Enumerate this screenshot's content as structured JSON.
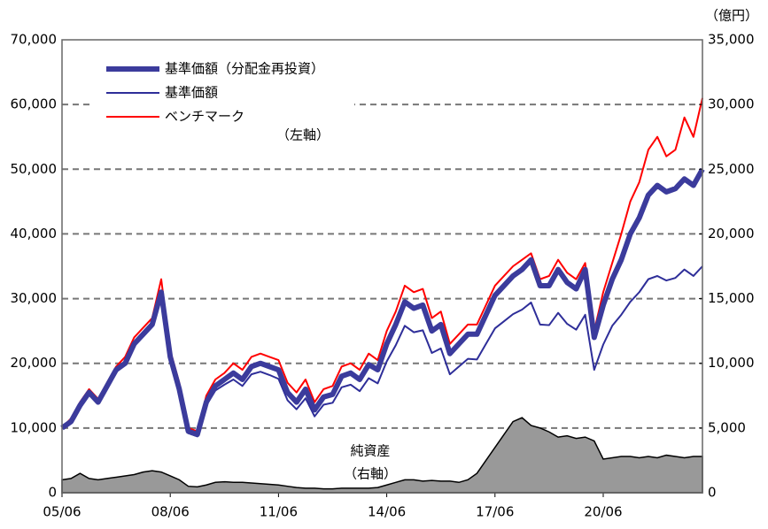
{
  "chart_data": {
    "type": "line",
    "x": [
      "05/06",
      "05/09",
      "05/12",
      "06/03",
      "06/06",
      "06/09",
      "06/12",
      "07/03",
      "07/06",
      "07/09",
      "07/12",
      "08/03",
      "08/06",
      "08/09",
      "08/12",
      "09/03",
      "09/06",
      "09/09",
      "09/12",
      "10/03",
      "10/06",
      "10/09",
      "10/12",
      "11/03",
      "11/06",
      "11/09",
      "11/12",
      "12/03",
      "12/06",
      "12/09",
      "12/12",
      "13/03",
      "13/06",
      "13/09",
      "13/12",
      "14/03",
      "14/06",
      "14/09",
      "14/12",
      "15/03",
      "15/06",
      "15/09",
      "15/12",
      "16/03",
      "16/06",
      "16/09",
      "16/12",
      "17/03",
      "17/06",
      "17/09",
      "17/12",
      "18/03",
      "18/06",
      "18/09",
      "18/12",
      "19/03",
      "19/06",
      "19/09",
      "19/12",
      "20/03",
      "20/06",
      "20/09",
      "20/12",
      "21/03",
      "21/06",
      "21/09",
      "21/12",
      "22/03",
      "22/06",
      "22/09",
      "22/12",
      "23/03"
    ],
    "series": [
      {
        "name": "基準価額（分配金再投資）",
        "color": "#3b3b9c",
        "width": 6,
        "values": [
          10000,
          11000,
          13500,
          15500,
          14000,
          16500,
          19000,
          20000,
          23000,
          24500,
          26000,
          31000,
          21000,
          16000,
          9500,
          9000,
          14000,
          16500,
          17500,
          18500,
          17500,
          19500,
          20000,
          19500,
          19000,
          15500,
          14000,
          16000,
          12800,
          14800,
          15200,
          18000,
          18500,
          17500,
          19800,
          19000,
          23000,
          26000,
          29500,
          28500,
          29000,
          25000,
          26000,
          21500,
          23000,
          24500,
          24500,
          27500,
          30500,
          32000,
          33500,
          34500,
          36000,
          32000,
          32000,
          34500,
          32500,
          31500,
          34500,
          24000,
          29000,
          33000,
          36000,
          40000,
          42500,
          46000,
          47500,
          46500,
          47000,
          48500,
          47500,
          50000
        ]
      },
      {
        "name": "基準価額",
        "color": "#2e2e99",
        "width": 2,
        "values": [
          10000,
          11000,
          13500,
          15500,
          14000,
          16500,
          19000,
          20000,
          23000,
          24500,
          26000,
          30500,
          20500,
          15500,
          9200,
          8700,
          13500,
          15800,
          16700,
          17500,
          16500,
          18300,
          18700,
          18200,
          17600,
          14300,
          12900,
          14600,
          11800,
          13600,
          13900,
          16300,
          16700,
          15700,
          17700,
          16900,
          20300,
          22800,
          25800,
          24800,
          25100,
          21600,
          22300,
          18300,
          19500,
          20700,
          20600,
          23000,
          25400,
          26500,
          27600,
          28300,
          29400,
          26000,
          25900,
          27800,
          26100,
          25200,
          27500,
          19000,
          22900,
          25800,
          27500,
          29500,
          31000,
          33000,
          33500,
          32800,
          33200,
          34500,
          33500,
          35000
        ]
      },
      {
        "name": "ベンチマーク",
        "color": "#ff0000",
        "width": 2,
        "values": [
          10000,
          11500,
          14000,
          16000,
          14500,
          17000,
          19500,
          21000,
          24000,
          25500,
          27000,
          33000,
          22000,
          17000,
          10000,
          9500,
          15000,
          17500,
          18500,
          20000,
          19000,
          21000,
          21500,
          21000,
          20500,
          17000,
          15500,
          17500,
          14000,
          16000,
          16500,
          19500,
          20000,
          19000,
          21500,
          20500,
          25000,
          28000,
          32000,
          31000,
          31500,
          27000,
          28000,
          23000,
          24500,
          26000,
          26000,
          29000,
          32000,
          33500,
          35000,
          36000,
          37000,
          33000,
          33500,
          36000,
          34000,
          33000,
          35500,
          25000,
          31000,
          35500,
          40000,
          45000,
          48000,
          53000,
          55000,
          52000,
          53000,
          58000,
          55000,
          61000
        ]
      },
      {
        "name": "純資産",
        "color": "#999999",
        "axis": "y2",
        "kind": "area",
        "values": [
          1000,
          1100,
          1500,
          1100,
          1000,
          1100,
          1200,
          1300,
          1400,
          1600,
          1700,
          1600,
          1300,
          1000,
          500,
          450,
          600,
          800,
          850,
          800,
          800,
          750,
          700,
          650,
          600,
          500,
          400,
          350,
          350,
          300,
          300,
          350,
          350,
          350,
          350,
          400,
          600,
          800,
          1000,
          1000,
          900,
          950,
          900,
          900,
          800,
          1000,
          1500,
          2500,
          3500,
          4500,
          5500,
          5800,
          5200,
          5000,
          4700,
          4300,
          4400,
          4200,
          4300,
          4000,
          2600,
          2700,
          2800,
          2800,
          2700,
          2800,
          2700,
          2900,
          2800,
          2700,
          2800,
          2800
        ]
      }
    ],
    "ylim": [
      0,
      70000
    ],
    "yticks": [
      0,
      {
        "value": 10000,
        "label": "10,000"
      },
      {
        "value": 20000,
        "label": "20,000"
      },
      {
        "value": 30000,
        "label": "30,000"
      },
      {
        "value": 40000,
        "label": "40,000"
      },
      {
        "value": 50000,
        "label": "50,000"
      },
      {
        "value": 60000,
        "label": "60,000"
      },
      {
        "value": 70000,
        "label": "70,000"
      }
    ],
    "y2lim": [
      0,
      35000
    ],
    "y2ticks": [
      0,
      {
        "value": 5000,
        "label": "5,000"
      },
      {
        "value": 10000,
        "label": "10,000"
      },
      {
        "value": 15000,
        "label": "15,000"
      },
      {
        "value": 20000,
        "label": "20,000"
      },
      {
        "value": 25000,
        "label": "25,000"
      },
      {
        "value": 30000,
        "label": "30,000"
      },
      {
        "value": 35000,
        "label": "35,000"
      }
    ],
    "y2_unit": "（億円）",
    "left_axis_note": "（左軸）",
    "right_axis_note": "（右軸）",
    "grid": true
  }
}
